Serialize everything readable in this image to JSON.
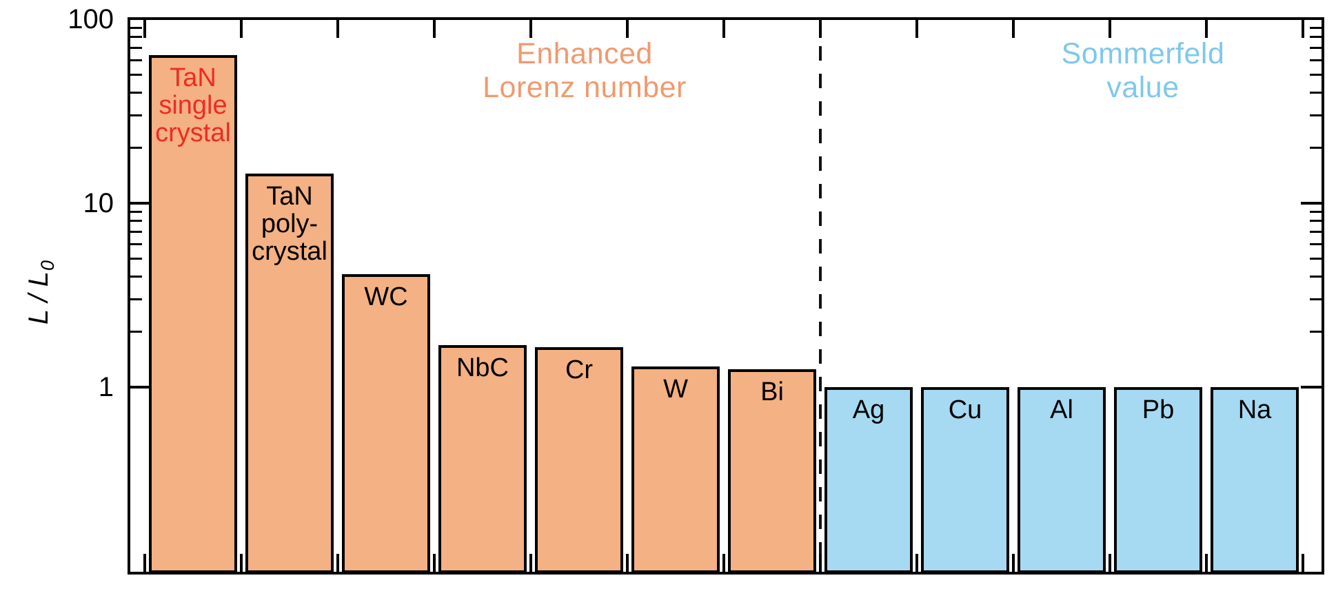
{
  "y_axis": {
    "label_main": "L / L",
    "label_sub": "0",
    "tick_labels": [
      "100",
      "10",
      "1"
    ]
  },
  "annotations": {
    "enhanced": {
      "line1": "Enhanced",
      "line2": "Lorenz number",
      "color": "#F09A6E"
    },
    "sommerfeld": {
      "line1": "Sommerfeld",
      "line2": "value",
      "color": "#7EC8EC"
    }
  },
  "colors": {
    "enhanced_bar_fill": "#F4B183",
    "sommerfeld_bar_fill": "#A6D9F2",
    "tan_single_label": "#EE2C22",
    "axis_and_text": "#000000"
  },
  "chart_data": {
    "type": "bar",
    "yscale": "log",
    "ylabel": "L / L0",
    "ylim": [
      0.1,
      100
    ],
    "yticks": [
      100,
      10,
      1
    ],
    "ytick_labels": [
      "100",
      "10",
      "1"
    ],
    "grid": false,
    "categories": [
      "TaN single crystal",
      "TaN polycrystal",
      "WC",
      "NbC",
      "Cr",
      "W",
      "Bi",
      "Ag",
      "Cu",
      "Al",
      "Pb",
      "Na"
    ],
    "values": [
      64,
      14.5,
      4.1,
      1.7,
      1.65,
      1.3,
      1.25,
      1.0,
      1.0,
      1.0,
      1.0,
      1.0
    ],
    "group_colors": {
      "enhanced": "#F4B183",
      "sommerfeld": "#A6D9F2"
    },
    "separator_after_index": 6,
    "separator_style": "vertical dashed black line between Bi and Ag",
    "bars": [
      {
        "lines": [
          "TaN",
          "single",
          "crystal"
        ],
        "value": 64,
        "group": "enhanced",
        "label_color": "#EE2C22"
      },
      {
        "lines": [
          "TaN",
          "poly-",
          "crystal"
        ],
        "value": 14.5,
        "group": "enhanced"
      },
      {
        "lines": [
          "WC"
        ],
        "value": 4.1,
        "group": "enhanced"
      },
      {
        "lines": [
          "NbC"
        ],
        "value": 1.7,
        "group": "enhanced"
      },
      {
        "lines": [
          "Cr"
        ],
        "value": 1.65,
        "group": "enhanced"
      },
      {
        "lines": [
          "W"
        ],
        "value": 1.3,
        "group": "enhanced"
      },
      {
        "lines": [
          "Bi"
        ],
        "value": 1.25,
        "group": "enhanced"
      },
      {
        "lines": [
          "Ag"
        ],
        "value": 1.0,
        "group": "sommerfeld"
      },
      {
        "lines": [
          "Cu"
        ],
        "value": 1.0,
        "group": "sommerfeld"
      },
      {
        "lines": [
          "Al"
        ],
        "value": 1.0,
        "group": "sommerfeld"
      },
      {
        "lines": [
          "Pb"
        ],
        "value": 1.0,
        "group": "sommerfeld"
      },
      {
        "lines": [
          "Na"
        ],
        "value": 1.0,
        "group": "sommerfeld"
      }
    ],
    "annotations": [
      {
        "text": "Enhanced Lorenz number",
        "color": "#F09A6E",
        "position": "top of left (enhanced) region"
      },
      {
        "text": "Sommerfeld value",
        "color": "#7EC8EC",
        "position": "top of right (Sommerfeld) region"
      }
    ],
    "legend": "none"
  }
}
